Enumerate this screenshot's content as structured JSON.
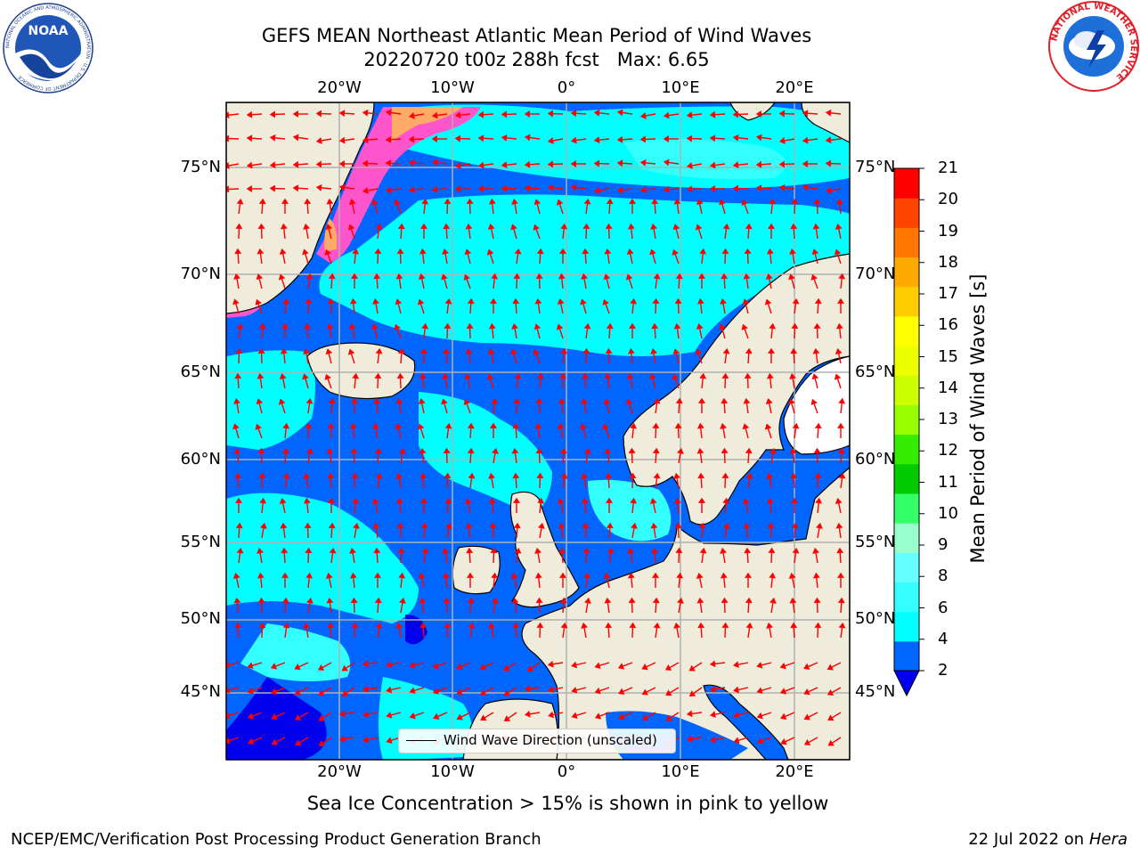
{
  "title": {
    "line1": "GEFS MEAN Northeast Atlantic Mean Period of Wind Waves",
    "line2": "20220720 t00z 288h fcst   Max: 6.65"
  },
  "axes": {
    "lat_labels": [
      "75°N",
      "70°N",
      "65°N",
      "60°N",
      "55°N",
      "50°N",
      "45°N"
    ],
    "lon_labels": [
      "20°W",
      "10°W",
      "0°",
      "10°E",
      "20°E"
    ]
  },
  "colorbar": {
    "label": "Mean Period of Wind Waves [s]",
    "ticks": [
      "2",
      "4",
      "6",
      "8",
      "9",
      "10",
      "11",
      "12",
      "13",
      "14",
      "15",
      "16",
      "17",
      "18",
      "19",
      "20",
      "21"
    ],
    "colors": [
      "#0066ff",
      "#00ffff",
      "#33ffff",
      "#66ffff",
      "#99ffcc",
      "#33ff66",
      "#00cc00",
      "#33ee00",
      "#99ff00",
      "#ccff00",
      "#eeff00",
      "#ffff00",
      "#ffcc00",
      "#ffaa00",
      "#ff7700",
      "#ff4400",
      "#ff0000"
    ],
    "under_color": "#0000ee"
  },
  "legend": {
    "text": "Wind Wave Direction (unscaled)"
  },
  "caption": "Sea Ice Concentration > 15% is shown in pink to yellow",
  "footer": {
    "left": "NCEP/EMC/Verification Post Processing Product Generation Branch",
    "right_date": "22 Jul 2022 on ",
    "right_host": "Hera"
  },
  "logos": {
    "left": "NOAA",
    "left_ring": "NATIONAL OCEANIC AND ATMOSPHERIC ADMINISTRATION · U.S. DEPARTMENT OF COMMERCE",
    "right_ring": "NATIONAL WEATHER SERVICE"
  },
  "map_colors": {
    "land": "#efecdc",
    "sea_dark": "#0066ff",
    "sea_mid": "#00ffff",
    "sea_light": "#33ffff",
    "sea_deep": "#0000ee",
    "ice_pink": "#ff55cc",
    "ice_orange": "#ffaa66",
    "arrow": "#ff0000",
    "grid": "#b0b0b0"
  }
}
